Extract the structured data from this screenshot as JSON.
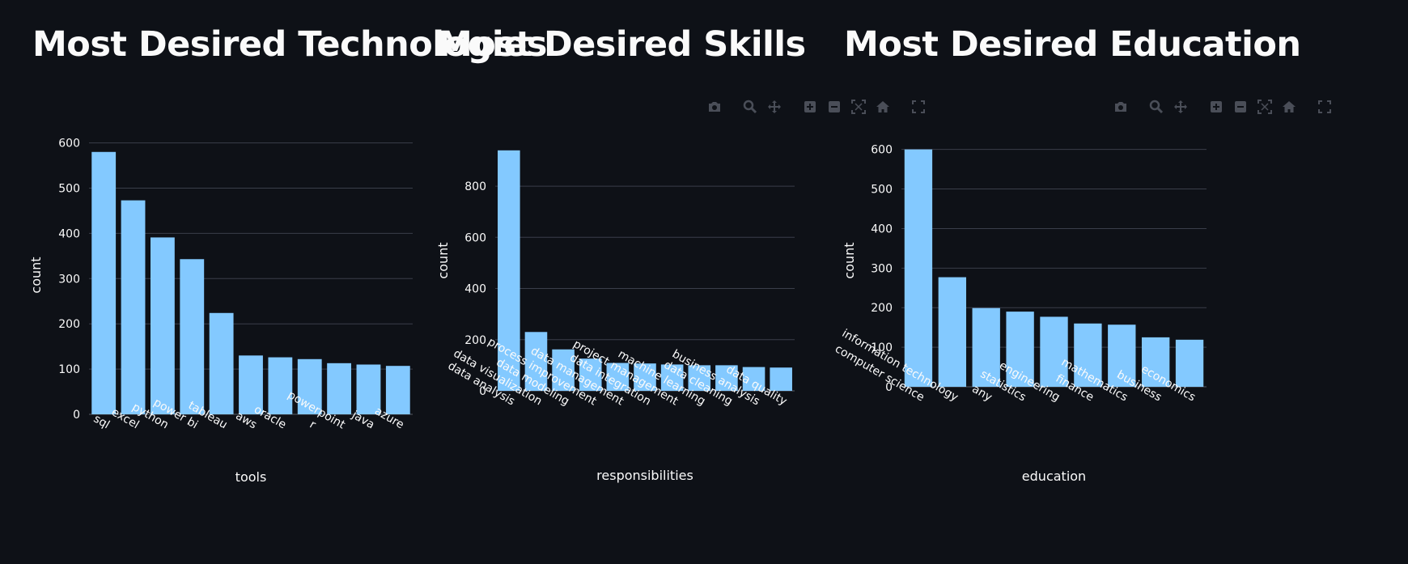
{
  "charts_meta": [
    {
      "title": "Most Desired Technologies",
      "show_modebar": false
    },
    {
      "title": "Most Desired Skills",
      "show_modebar": true
    },
    {
      "title": "Most Desired Education",
      "show_modebar": true
    }
  ],
  "colors": {
    "background": "#0e1117",
    "bar": "#83c9ff",
    "grid": "#3a3e4a",
    "text": "#fafafa",
    "icon": "#4a4e58"
  },
  "modebar_icons": [
    "camera-icon",
    "zoom-icon",
    "pan-icon",
    "zoom-in-icon",
    "zoom-out-icon",
    "autoscale-icon",
    "home-icon",
    "fullscreen-icon"
  ],
  "chart_data": [
    {
      "type": "bar",
      "title": "Most Desired Technologies",
      "xlabel": "tools",
      "ylabel": "count",
      "categories": [
        "sql",
        "excel",
        "python",
        "power bi",
        "tableau",
        "aws",
        "oracle",
        "r",
        "powerpoint",
        "java",
        "azure"
      ],
      "values": [
        580,
        473,
        391,
        343,
        224,
        130,
        126,
        122,
        113,
        110,
        107
      ],
      "yticks": [
        0,
        100,
        200,
        300,
        400,
        500,
        600
      ],
      "ylim": [
        0,
        610
      ],
      "grid": true
    },
    {
      "type": "bar",
      "title": "Most Desired Skills",
      "xlabel": "responsibilities",
      "ylabel": "count",
      "categories": [
        "data analysis",
        "data visualization",
        "data modeling",
        "process improvement",
        "data management",
        "data integration",
        "project management",
        "machine learning",
        "data cleaning",
        "business analysis",
        "data quality"
      ],
      "values": [
        940,
        230,
        162,
        126,
        109,
        107,
        103,
        100,
        100,
        93,
        91
      ],
      "yticks": [
        0,
        200,
        400,
        600,
        800
      ],
      "ylim": [
        0,
        990
      ],
      "grid": true
    },
    {
      "type": "bar",
      "title": "Most Desired Education",
      "xlabel": "education",
      "ylabel": "count",
      "categories": [
        "computer science",
        "information technology",
        "any",
        "statistics",
        "engineering",
        "finance",
        "mathematics",
        "business",
        "economics"
      ],
      "values": [
        600,
        277,
        199,
        190,
        177,
        160,
        157,
        125,
        119
      ],
      "yticks": [
        0,
        100,
        200,
        300,
        400,
        500,
        600
      ],
      "ylim": [
        0,
        630
      ],
      "grid": true
    }
  ]
}
